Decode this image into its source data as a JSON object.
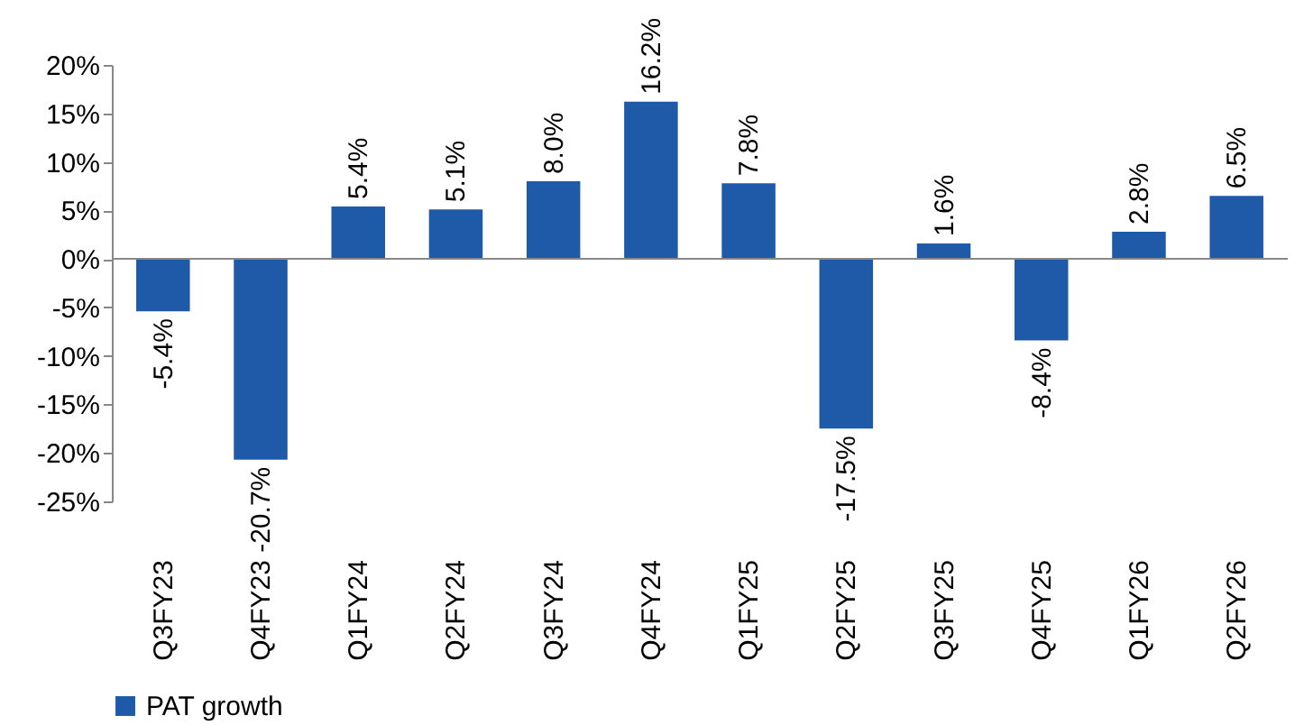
{
  "chart_data": {
    "type": "bar",
    "categories": [
      "Q3FY23",
      "Q4FY23",
      "Q1FY24",
      "Q2FY24",
      "Q3FY24",
      "Q4FY24",
      "Q1FY25",
      "Q2FY25",
      "Q3FY25",
      "Q4FY25",
      "Q1FY26",
      "Q2FY26"
    ],
    "series": [
      {
        "name": "PAT growth",
        "color": "#1f5aa8",
        "values": [
          -5.4,
          -20.7,
          5.4,
          5.1,
          8.0,
          16.2,
          7.8,
          -17.5,
          1.6,
          -8.4,
          2.8,
          6.5
        ],
        "value_labels": [
          "-5.4%",
          "-20.7%",
          "5.4%",
          "5.1%",
          "8.0%",
          "16.2%",
          "7.8%",
          "-17.5%",
          "1.6%",
          "-8.4%",
          "2.8%",
          "6.5%"
        ]
      }
    ],
    "ylim": [
      -25,
      20
    ],
    "yticks": [
      {
        "value": -25,
        "label": "-25%"
      },
      {
        "value": -20,
        "label": "-20%"
      },
      {
        "value": -15,
        "label": "-15%"
      },
      {
        "value": -10,
        "label": "-10%"
      },
      {
        "value": -5,
        "label": "-5%"
      },
      {
        "value": 0,
        "label": "0%"
      },
      {
        "value": 5,
        "label": "5%"
      },
      {
        "value": 10,
        "label": "10%"
      },
      {
        "value": 15,
        "label": "15%"
      },
      {
        "value": 20,
        "label": "20%"
      }
    ],
    "ref_lines": [
      {
        "axis": "y",
        "value": 0,
        "color": "#888888"
      }
    ],
    "grid": false,
    "legend": "bottom"
  }
}
